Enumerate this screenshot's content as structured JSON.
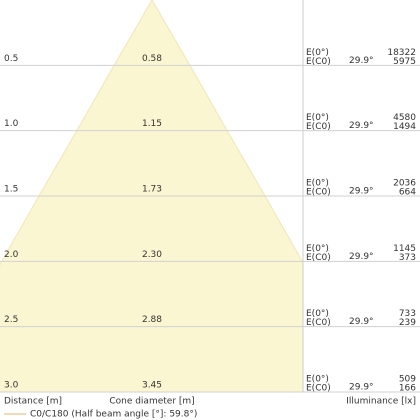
{
  "chart_data": {
    "type": "cone",
    "ylim": [
      0,
      3
    ],
    "yticks": [
      0.5,
      {
        "value": 1.0,
        "label": "1.0"
      },
      1.5,
      {
        "value": 2.0,
        "label": "2.0"
      },
      2.5,
      {
        "value": 3.0,
        "label": "3.0"
      }
    ],
    "diameters": {
      "values": [
        0.58,
        1.15,
        1.73,
        2.3,
        2.88,
        3.45
      ],
      "value_labels": [
        "0.58",
        "1.15",
        "1.73",
        "2.30",
        "2.88",
        "3.45"
      ]
    },
    "series": [
      {
        "name": "E(0°)",
        "values": [
          18322,
          4580,
          2036,
          1145,
          733,
          509
        ]
      },
      {
        "name": "E(C0)",
        "values": [
          5975,
          1494,
          664,
          373,
          239,
          166
        ]
      }
    ],
    "angle_label": "29.9°",
    "axis_labels": {
      "distance": "Distance [m]",
      "diameter": "Cone diameter [m]",
      "illuminance": "Illuminance [lx]"
    },
    "legend": "C0/C180 (Half beam angle [°]: 59.8°)",
    "color": "#fbf6d2",
    "legend_color": "#f2cf9a"
  }
}
